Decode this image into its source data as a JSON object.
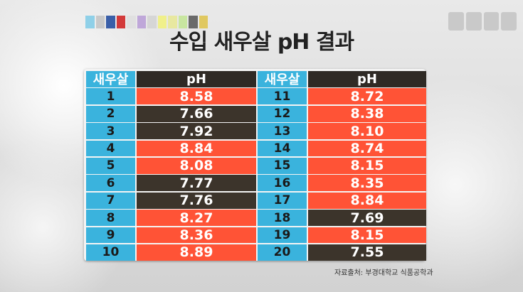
{
  "title": "수입 새우살 pH 결과",
  "table": {
    "header_shrimp": "새우살",
    "header_ph": "pH",
    "left_rows": [
      {
        "num": "1",
        "ph": "8.58",
        "level": "high"
      },
      {
        "num": "2",
        "ph": "7.66",
        "level": "low"
      },
      {
        "num": "3",
        "ph": "7.92",
        "level": "low"
      },
      {
        "num": "4",
        "ph": "8.84",
        "level": "high"
      },
      {
        "num": "5",
        "ph": "8.08",
        "level": "high"
      },
      {
        "num": "6",
        "ph": "7.77",
        "level": "low"
      },
      {
        "num": "7",
        "ph": "7.76",
        "level": "low"
      },
      {
        "num": "8",
        "ph": "8.27",
        "level": "high"
      },
      {
        "num": "9",
        "ph": "8.36",
        "level": "high"
      },
      {
        "num": "10",
        "ph": "8.89",
        "level": "high"
      }
    ],
    "right_rows": [
      {
        "num": "11",
        "ph": "8.72",
        "level": "high"
      },
      {
        "num": "12",
        "ph": "8.38",
        "level": "high"
      },
      {
        "num": "13",
        "ph": "8.10",
        "level": "high"
      },
      {
        "num": "14",
        "ph": "8.74",
        "level": "high"
      },
      {
        "num": "15",
        "ph": "8.15",
        "level": "high"
      },
      {
        "num": "16",
        "ph": "8.35",
        "level": "high"
      },
      {
        "num": "17",
        "ph": "8.84",
        "level": "high"
      },
      {
        "num": "18",
        "ph": "7.69",
        "level": "low"
      },
      {
        "num": "19",
        "ph": "8.15",
        "level": "high"
      },
      {
        "num": "20",
        "ph": "7.55",
        "level": "low"
      }
    ]
  },
  "source": "자료출처: 부경대학교 식품공학과",
  "colors": {
    "number_cell": "#3ab3dd",
    "high_ph": "#ff5336",
    "low_ph": "#3c342b",
    "header_ph": "#2f2a25"
  },
  "logos": {
    "top_left": "blurred-broadcaster-logo",
    "top_right": "blurred-channel-logo"
  }
}
